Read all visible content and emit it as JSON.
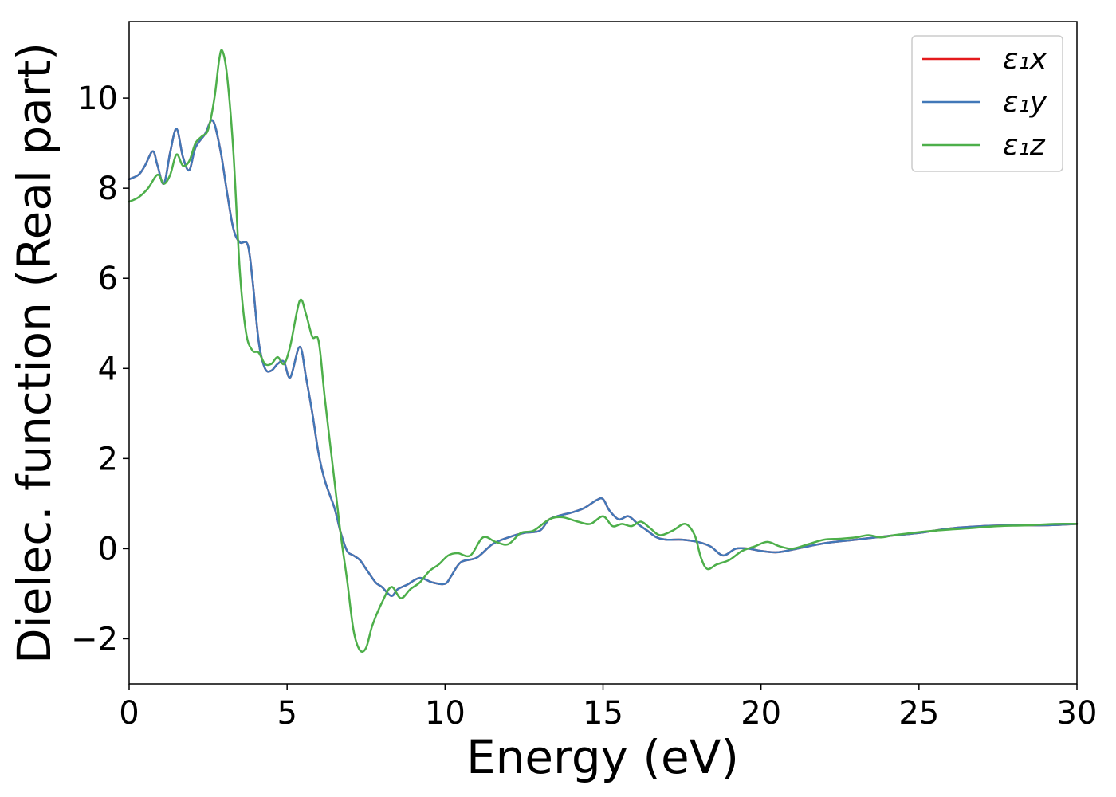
{
  "chart_data": {
    "type": "line",
    "xlabel": "Energy (eV)",
    "ylabel": "Dielec. function (Real part)",
    "xlim": [
      0,
      30
    ],
    "ylim": [
      -3,
      11.7
    ],
    "xticks": [
      0,
      5,
      10,
      15,
      20,
      25,
      30
    ],
    "yticks": [
      -2,
      0,
      2,
      4,
      6,
      8,
      10
    ],
    "xtick_labels": [
      "0",
      "5",
      "10",
      "15",
      "20",
      "25",
      "30"
    ],
    "ytick_labels": [
      "−2",
      "0",
      "2",
      "4",
      "6",
      "8",
      "10"
    ],
    "grid": false,
    "legend": "top-right",
    "series": [
      {
        "name": "ε₁x",
        "color": "#e41a1c",
        "x": [
          0,
          0.3,
          0.5,
          0.75,
          0.9,
          1.1,
          1.3,
          1.5,
          1.7,
          1.9,
          2.1,
          2.4,
          2.65,
          2.9,
          3.1,
          3.3,
          3.5,
          3.75,
          3.9,
          4.1,
          4.3,
          4.5,
          4.7,
          4.9,
          5.1,
          5.4,
          5.6,
          5.8,
          6.0,
          6.2,
          6.5,
          6.7,
          6.9,
          7.1,
          7.3,
          7.5,
          7.8,
          8.0,
          8.3,
          8.5,
          8.8,
          9.2,
          9.6,
          10.0,
          10.2,
          10.5,
          11.0,
          11.5,
          12.0,
          12.5,
          13.0,
          13.3,
          13.7,
          14.0,
          14.4,
          14.8,
          15.0,
          15.2,
          15.5,
          15.8,
          16.1,
          16.4,
          16.7,
          17.0,
          17.5,
          18.0,
          18.4,
          18.8,
          19.2,
          19.6,
          20.0,
          20.5,
          21.0,
          22.0,
          23.0,
          24.0,
          25.0,
          26.0,
          27.0,
          28.0,
          29.0,
          30.0
        ],
        "values": [
          8.2,
          8.3,
          8.5,
          8.82,
          8.5,
          8.1,
          8.8,
          9.32,
          8.7,
          8.4,
          8.9,
          9.2,
          9.5,
          8.8,
          7.9,
          7.1,
          6.8,
          6.75,
          6.0,
          4.6,
          4.0,
          3.95,
          4.1,
          4.15,
          3.8,
          4.48,
          3.8,
          3.0,
          2.1,
          1.5,
          0.9,
          0.35,
          -0.05,
          -0.15,
          -0.25,
          -0.45,
          -0.75,
          -0.85,
          -1.05,
          -0.9,
          -0.8,
          -0.65,
          -0.75,
          -0.78,
          -0.6,
          -0.3,
          -0.2,
          0.1,
          0.25,
          0.35,
          0.4,
          0.65,
          0.75,
          0.8,
          0.9,
          1.08,
          1.1,
          0.85,
          0.65,
          0.72,
          0.55,
          0.4,
          0.25,
          0.2,
          0.2,
          0.15,
          0.05,
          -0.15,
          0.0,
          0.0,
          -0.05,
          -0.08,
          -0.02,
          0.12,
          0.2,
          0.28,
          0.35,
          0.45,
          0.5,
          0.52,
          0.52,
          0.55
        ]
      },
      {
        "name": "ε₁y",
        "color": "#4178b8",
        "x": [
          0,
          0.3,
          0.5,
          0.75,
          0.9,
          1.1,
          1.3,
          1.5,
          1.7,
          1.9,
          2.1,
          2.4,
          2.65,
          2.9,
          3.1,
          3.3,
          3.5,
          3.75,
          3.9,
          4.1,
          4.3,
          4.5,
          4.7,
          4.9,
          5.1,
          5.4,
          5.6,
          5.8,
          6.0,
          6.2,
          6.5,
          6.7,
          6.9,
          7.1,
          7.3,
          7.5,
          7.8,
          8.0,
          8.3,
          8.5,
          8.8,
          9.2,
          9.6,
          10.0,
          10.2,
          10.5,
          11.0,
          11.5,
          12.0,
          12.5,
          13.0,
          13.3,
          13.7,
          14.0,
          14.4,
          14.8,
          15.0,
          15.2,
          15.5,
          15.8,
          16.1,
          16.4,
          16.7,
          17.0,
          17.5,
          18.0,
          18.4,
          18.8,
          19.2,
          19.6,
          20.0,
          20.5,
          21.0,
          22.0,
          23.0,
          24.0,
          25.0,
          26.0,
          27.0,
          28.0,
          29.0,
          30.0
        ],
        "values": [
          8.2,
          8.3,
          8.5,
          8.82,
          8.5,
          8.1,
          8.8,
          9.32,
          8.7,
          8.4,
          8.9,
          9.2,
          9.5,
          8.8,
          7.9,
          7.1,
          6.8,
          6.75,
          6.0,
          4.6,
          4.0,
          3.95,
          4.1,
          4.15,
          3.8,
          4.48,
          3.8,
          3.0,
          2.1,
          1.5,
          0.9,
          0.35,
          -0.05,
          -0.15,
          -0.25,
          -0.45,
          -0.75,
          -0.85,
          -1.05,
          -0.9,
          -0.8,
          -0.65,
          -0.75,
          -0.78,
          -0.6,
          -0.3,
          -0.2,
          0.1,
          0.25,
          0.35,
          0.4,
          0.65,
          0.75,
          0.8,
          0.9,
          1.08,
          1.1,
          0.85,
          0.65,
          0.72,
          0.55,
          0.4,
          0.25,
          0.2,
          0.2,
          0.15,
          0.05,
          -0.15,
          0.0,
          0.0,
          -0.05,
          -0.08,
          -0.02,
          0.12,
          0.2,
          0.28,
          0.35,
          0.45,
          0.5,
          0.52,
          0.52,
          0.55
        ]
      },
      {
        "name": "ε₁z",
        "color": "#4daf4a",
        "x": [
          0,
          0.3,
          0.6,
          0.9,
          1.1,
          1.3,
          1.5,
          1.7,
          1.9,
          2.1,
          2.3,
          2.5,
          2.7,
          2.85,
          2.95,
          3.1,
          3.3,
          3.5,
          3.7,
          3.9,
          4.1,
          4.3,
          4.5,
          4.7,
          4.9,
          5.1,
          5.4,
          5.6,
          5.8,
          6.0,
          6.2,
          6.5,
          6.7,
          6.9,
          7.1,
          7.3,
          7.5,
          7.7,
          8.0,
          8.3,
          8.6,
          8.9,
          9.2,
          9.5,
          9.8,
          10.1,
          10.4,
          10.8,
          11.2,
          11.6,
          12.0,
          12.4,
          12.8,
          13.3,
          13.7,
          14.2,
          14.6,
          15.0,
          15.3,
          15.6,
          15.9,
          16.2,
          16.5,
          16.8,
          17.2,
          17.6,
          17.9,
          18.1,
          18.3,
          18.6,
          19.0,
          19.4,
          19.8,
          20.2,
          20.6,
          21.0,
          21.5,
          22.0,
          22.5,
          23.0,
          23.4,
          23.8,
          24.2,
          24.8,
          25.5,
          26.5,
          27.5,
          28.5,
          29.3,
          30.0
        ],
        "values": [
          7.7,
          7.8,
          8.0,
          8.3,
          8.1,
          8.3,
          8.75,
          8.5,
          8.6,
          9.0,
          9.15,
          9.3,
          10.0,
          10.85,
          11.05,
          10.5,
          8.8,
          6.2,
          4.8,
          4.4,
          4.35,
          4.1,
          4.1,
          4.25,
          4.1,
          4.5,
          5.5,
          5.2,
          4.7,
          4.6,
          3.3,
          1.5,
          0.3,
          -0.7,
          -1.8,
          -2.25,
          -2.2,
          -1.7,
          -1.2,
          -0.85,
          -1.1,
          -0.9,
          -0.75,
          -0.5,
          -0.35,
          -0.15,
          -0.1,
          -0.15,
          0.25,
          0.15,
          0.1,
          0.35,
          0.4,
          0.65,
          0.7,
          0.6,
          0.55,
          0.72,
          0.5,
          0.55,
          0.5,
          0.6,
          0.45,
          0.3,
          0.4,
          0.55,
          0.3,
          -0.2,
          -0.45,
          -0.35,
          -0.25,
          -0.05,
          0.05,
          0.15,
          0.05,
          0.0,
          0.1,
          0.2,
          0.22,
          0.25,
          0.3,
          0.25,
          0.3,
          0.35,
          0.4,
          0.45,
          0.5,
          0.52,
          0.55,
          0.55
        ]
      }
    ]
  }
}
